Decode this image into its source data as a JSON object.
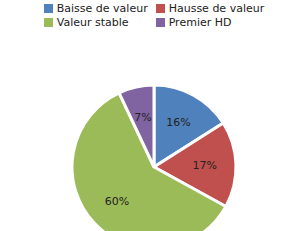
{
  "chart_data": {
    "type": "pie",
    "categories": [
      "Baisse de valeur",
      "Hausse de valeur",
      "Valeur stable",
      "Premier HD"
    ],
    "values": [
      16,
      17,
      60,
      7
    ],
    "value_labels": [
      "16%",
      "17%",
      "60%",
      "7%"
    ],
    "colors": [
      "#4f81bd",
      "#c0504d",
      "#9bbb59",
      "#8064a2"
    ],
    "data_labels": true,
    "legend": "top"
  }
}
